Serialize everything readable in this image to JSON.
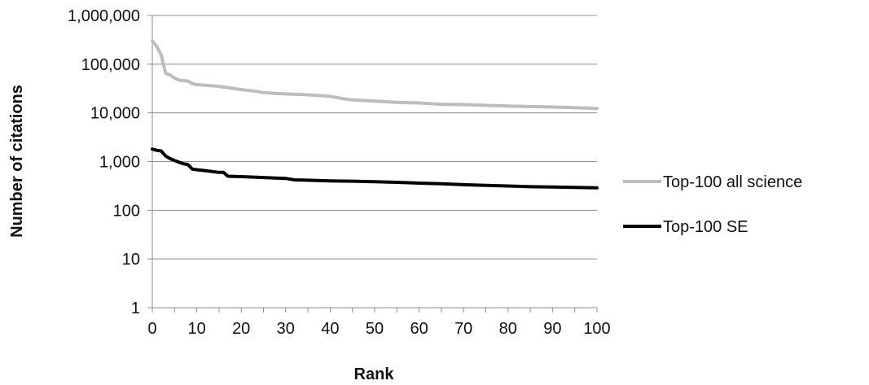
{
  "chart_data": {
    "type": "line",
    "xlabel": "Rank",
    "ylabel": "Number of citations",
    "yscale": "log",
    "xlim": [
      0,
      100
    ],
    "ylim": [
      1,
      1000000
    ],
    "x_ticks": [
      "0",
      "10",
      "20",
      "30",
      "40",
      "50",
      "60",
      "70",
      "80",
      "90",
      "100"
    ],
    "y_ticks": [
      "1",
      "10",
      "100",
      "1,000",
      "10,000",
      "100,000",
      "1,000,000"
    ],
    "grid": "horizontal",
    "legend_position": "right",
    "series": [
      {
        "name": "Top-100 all science",
        "color": "#bdbdbd",
        "x": [
          0,
          1,
          2,
          3,
          4,
          5,
          6,
          7,
          8,
          9,
          10,
          12,
          15,
          17,
          20,
          23,
          25,
          28,
          30,
          35,
          40,
          43,
          45,
          50,
          55,
          60,
          65,
          70,
          75,
          80,
          85,
          90,
          95,
          100
        ],
        "y": [
          305000,
          230000,
          155000,
          65000,
          60000,
          52000,
          47000,
          46000,
          45000,
          40000,
          38000,
          37000,
          35000,
          33000,
          30000,
          28000,
          26000,
          25000,
          24500,
          23500,
          22000,
          19500,
          18500,
          17500,
          16500,
          16000,
          15000,
          14800,
          14300,
          13800,
          13500,
          13200,
          12800,
          12300
        ]
      },
      {
        "name": "Top-100 SE",
        "color": "#000000",
        "x": [
          0,
          1,
          2,
          3,
          4,
          5,
          6,
          7,
          8,
          9,
          10,
          12,
          15,
          16,
          17,
          20,
          25,
          30,
          32,
          35,
          40,
          45,
          50,
          55,
          60,
          65,
          70,
          75,
          80,
          85,
          90,
          95,
          100
        ],
        "y": [
          1800,
          1700,
          1650,
          1300,
          1150,
          1050,
          970,
          900,
          870,
          700,
          680,
          650,
          600,
          600,
          500,
          490,
          470,
          450,
          420,
          415,
          400,
          395,
          385,
          375,
          360,
          350,
          335,
          325,
          315,
          305,
          300,
          295,
          290
        ]
      }
    ]
  }
}
